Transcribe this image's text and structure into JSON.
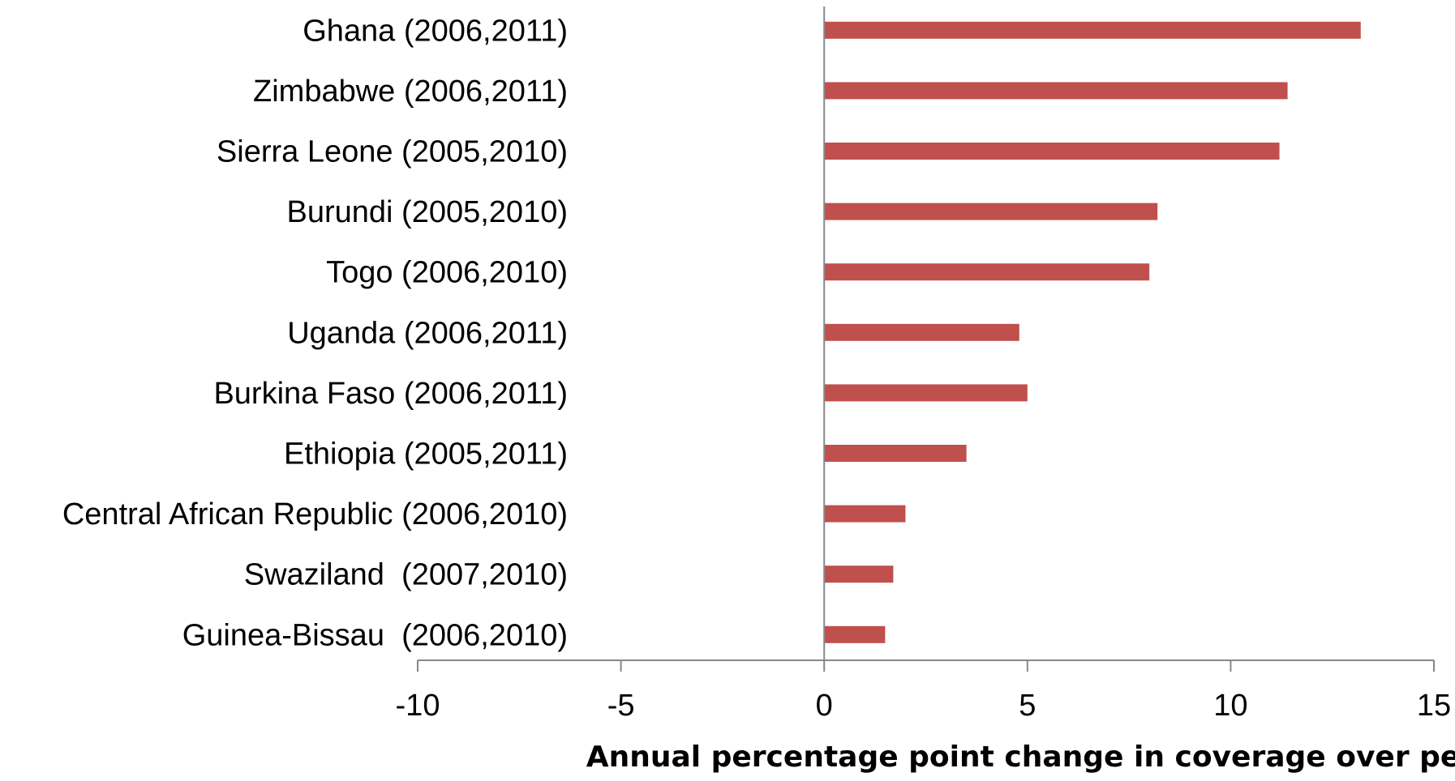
{
  "chart_data": {
    "type": "bar",
    "orientation": "horizontal",
    "categories": [
      "Ghana (2006,2011)",
      "Zimbabwe (2006,2011)",
      "Sierra Leone (2005,2010)",
      "Burundi (2005,2010)",
      "Togo (2006,2010)",
      "Uganda (2006,2011)",
      "Burkina Faso (2006,2011)",
      "Ethiopia (2005,2011)",
      "Central African Republic (2006,2010)",
      "Swaziland  (2007,2010)",
      "Guinea-Bissau  (2006,2010)"
    ],
    "values": [
      13.2,
      11.4,
      11.2,
      8.2,
      8.0,
      4.8,
      5.0,
      3.5,
      2.0,
      1.7,
      1.5
    ],
    "xlabel": "Annual percentage point change in coverage over period",
    "ylabel": "",
    "xlim": [
      -10,
      15
    ],
    "xticks": [
      -10,
      -5,
      0,
      5,
      10,
      15
    ],
    "xtick_labels": [
      "-10",
      "-5",
      "0",
      "5",
      "10",
      "15"
    ],
    "grid": false,
    "bar_color": "#c0504d"
  }
}
